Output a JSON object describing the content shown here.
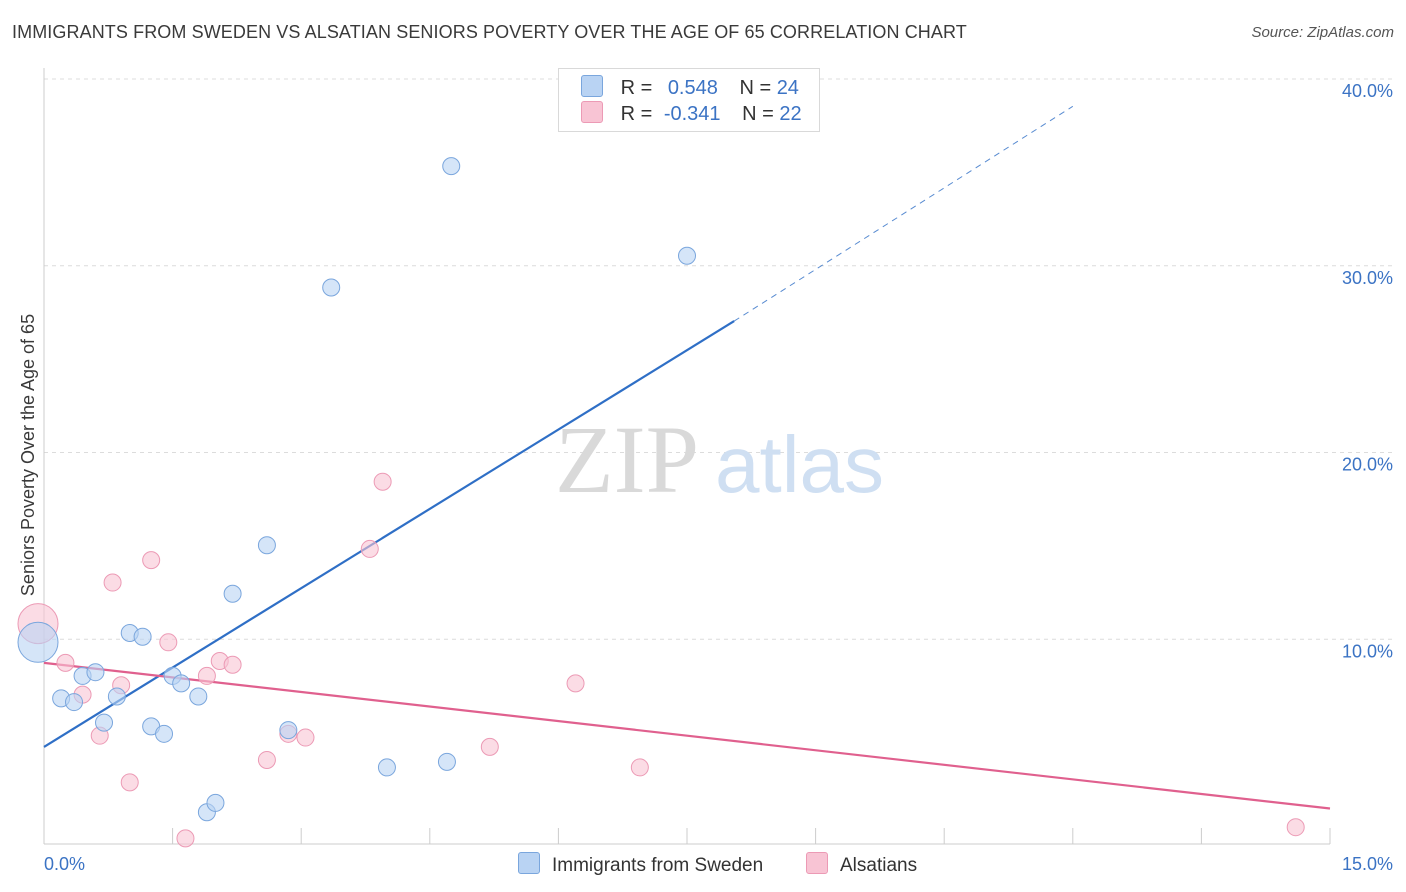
{
  "title": "IMMIGRANTS FROM SWEDEN VS ALSATIAN SENIORS POVERTY OVER THE AGE OF 65 CORRELATION CHART",
  "source": "Source: ZipAtlas.com",
  "watermark": {
    "zip": "ZIP",
    "atlas": "atlas"
  },
  "colors": {
    "blue_fill": "#b9d3f3",
    "blue_stroke": "#7aa6dd",
    "blue_line": "#2f6fc6",
    "pink_fill": "#f8c4d4",
    "pink_stroke": "#ec9ab5",
    "pink_line": "#e0608e",
    "tick_text": "#3b73c4",
    "grid": "#dcdcdc"
  },
  "stats_legend": [
    {
      "r_label": "R =",
      "r_value": "0.548",
      "n_label": "N =",
      "n_value": "24"
    },
    {
      "r_label": "R =",
      "r_value": "-0.341",
      "n_label": "N =",
      "n_value": "22"
    }
  ],
  "chart_data": {
    "type": "scatter",
    "title": "IMMIGRANTS FROM SWEDEN VS ALSATIAN SENIORS POVERTY OVER THE AGE OF 65 CORRELATION CHART",
    "xlabel": "",
    "ylabel": "Seniors Poverty Over the Age of 65",
    "xlim": [
      0,
      15
    ],
    "ylim": [
      0,
      40
    ],
    "x_tick_labels": [
      "0.0%",
      "15.0%"
    ],
    "y_ticks": [
      10,
      20,
      30,
      40
    ],
    "y_tick_labels": [
      "10.0%",
      "20.0%",
      "30.0%",
      "40.0%"
    ],
    "legend_position": "bottom-center",
    "series": [
      {
        "name": "Immigrants from Sweden",
        "points": [
          {
            "x": 0.0,
            "y": 10.8,
            "big": true
          },
          {
            "x": 0.2,
            "y": 7.8
          },
          {
            "x": 0.35,
            "y": 7.6
          },
          {
            "x": 0.45,
            "y": 9.0
          },
          {
            "x": 0.6,
            "y": 9.2
          },
          {
            "x": 0.7,
            "y": 6.5
          },
          {
            "x": 0.85,
            "y": 7.9
          },
          {
            "x": 1.0,
            "y": 11.3
          },
          {
            "x": 1.15,
            "y": 11.1
          },
          {
            "x": 1.25,
            "y": 6.3
          },
          {
            "x": 1.4,
            "y": 5.9
          },
          {
            "x": 1.5,
            "y": 9.0
          },
          {
            "x": 1.6,
            "y": 8.6
          },
          {
            "x": 1.8,
            "y": 7.9
          },
          {
            "x": 1.9,
            "y": 1.7
          },
          {
            "x": 2.0,
            "y": 2.2
          },
          {
            "x": 2.2,
            "y": 13.4
          },
          {
            "x": 2.6,
            "y": 16.0
          },
          {
            "x": 2.85,
            "y": 6.1
          },
          {
            "x": 3.35,
            "y": 29.8
          },
          {
            "x": 4.0,
            "y": 4.1
          },
          {
            "x": 4.7,
            "y": 4.4
          },
          {
            "x": 4.75,
            "y": 36.3
          },
          {
            "x": 7.5,
            "y": 31.5
          }
        ],
        "trend": {
          "x0": 0,
          "y0": 5.2,
          "x1": 8.05,
          "y1": 28.0,
          "dash_to_x": 12.0,
          "dash_to_y": 39.5
        }
      },
      {
        "name": "Alsatians",
        "points": [
          {
            "x": 0.0,
            "y": 11.8,
            "big": true
          },
          {
            "x": 0.25,
            "y": 9.7
          },
          {
            "x": 0.45,
            "y": 8.0
          },
          {
            "x": 0.65,
            "y": 5.8
          },
          {
            "x": 0.8,
            "y": 14.0
          },
          {
            "x": 0.9,
            "y": 8.5
          },
          {
            "x": 1.0,
            "y": 3.3
          },
          {
            "x": 1.25,
            "y": 15.2
          },
          {
            "x": 1.45,
            "y": 10.8
          },
          {
            "x": 1.65,
            "y": 0.3
          },
          {
            "x": 1.9,
            "y": 9.0
          },
          {
            "x": 2.05,
            "y": 9.8
          },
          {
            "x": 2.2,
            "y": 9.6
          },
          {
            "x": 2.6,
            "y": 4.5
          },
          {
            "x": 2.85,
            "y": 5.9
          },
          {
            "x": 3.05,
            "y": 5.7
          },
          {
            "x": 3.8,
            "y": 15.8
          },
          {
            "x": 3.95,
            "y": 19.4
          },
          {
            "x": 5.2,
            "y": 5.2
          },
          {
            "x": 6.2,
            "y": 8.6
          },
          {
            "x": 6.95,
            "y": 4.1
          },
          {
            "x": 14.6,
            "y": 0.9
          }
        ],
        "trend": {
          "x0": 0,
          "y0": 9.7,
          "x1": 15.0,
          "y1": 1.9
        }
      }
    ]
  }
}
